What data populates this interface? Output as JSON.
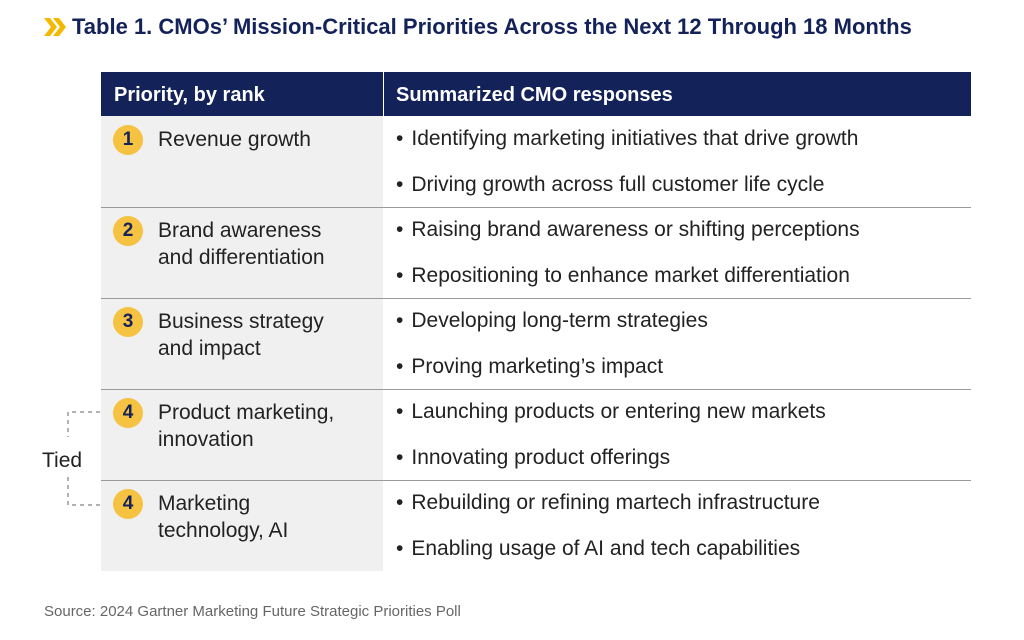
{
  "title": "Table 1. CMOs’ Mission-Critical Priorities Across the Next 12 Through 18 Months",
  "table": {
    "headers": [
      "Priority, by rank",
      "Summarized CMO responses"
    ],
    "rows": [
      {
        "rank": 1,
        "priority": [
          "Revenue growth"
        ],
        "responses": [
          "Identifying marketing initiatives that drive growth",
          "Driving growth across full customer life cycle"
        ]
      },
      {
        "rank": 2,
        "priority": [
          "Brand awareness",
          "and differentiation"
        ],
        "responses": [
          "Raising brand awareness or shifting perceptions",
          "Repositioning to enhance market differentiation"
        ]
      },
      {
        "rank": 3,
        "priority": [
          "Business strategy",
          "and impact"
        ],
        "responses": [
          "Developing long-term strategies",
          "Proving marketing’s impact"
        ]
      },
      {
        "rank": 4,
        "priority": [
          "Product marketing,",
          "innovation"
        ],
        "responses": [
          "Launching products or entering new markets",
          "Innovating product offerings"
        ]
      },
      {
        "rank": 4,
        "priority": [
          "Marketing",
          "technology, AI"
        ],
        "responses": [
          "Rebuilding or refining martech infrastructure",
          "Enabling usage of AI and tech capabilities"
        ]
      }
    ]
  },
  "tied_label": "Tied",
  "source": "Source: 2024 Gartner Marketing Future Strategic Priorities Poll"
}
